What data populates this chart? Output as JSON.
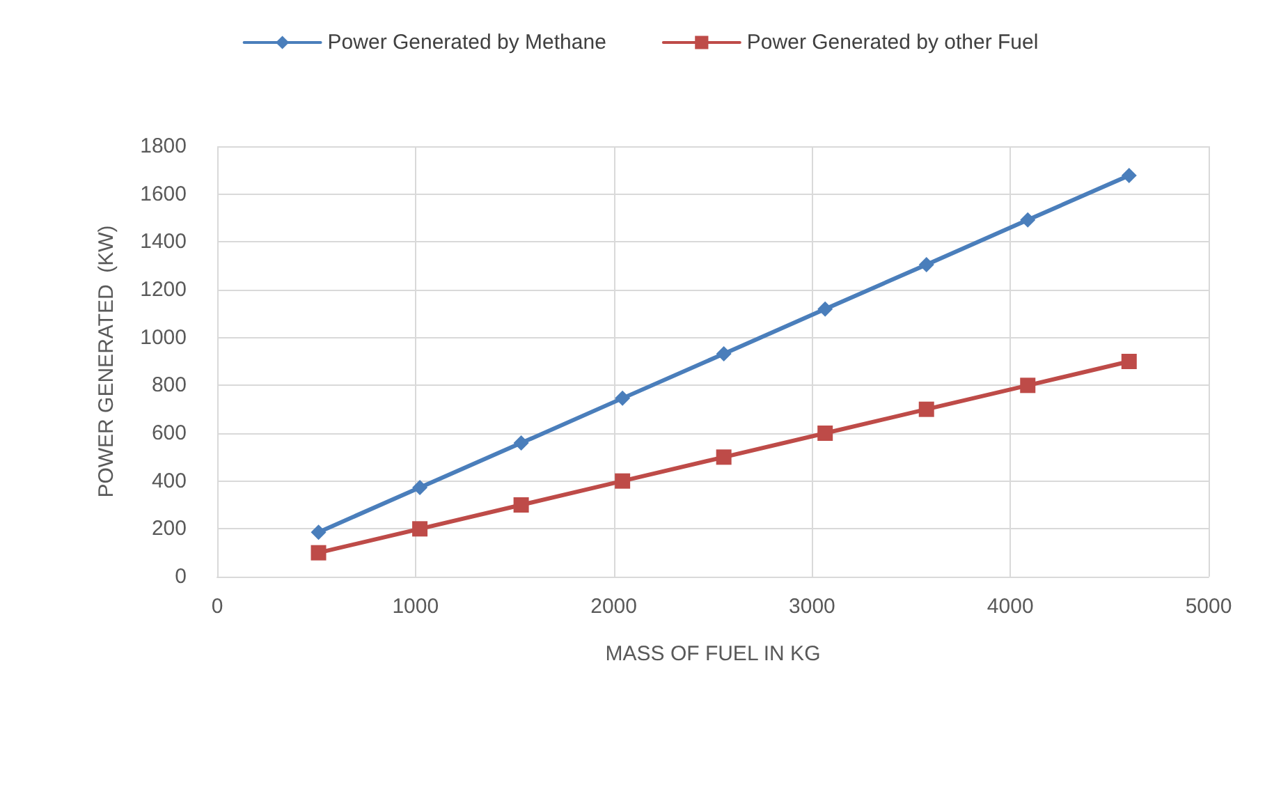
{
  "chart_data": {
    "type": "line",
    "xlabel": "MASS OF FUEL IN KG",
    "ylabel": "POWER GENERATED  (KW)",
    "x": [
      511,
      1022,
      1533,
      2044,
      2555,
      3066,
      3577,
      4088,
      4599
    ],
    "series": [
      {
        "name": "Power Generated by Methane",
        "color": "#4a7ebb",
        "marker": "diamond",
        "values": [
          186,
          373,
          559,
          746,
          932,
          1119,
          1305,
          1492,
          1678
        ]
      },
      {
        "name": "Power Generated by other Fuel",
        "color": "#be4b48",
        "marker": "square",
        "values": [
          100,
          200,
          300,
          400,
          500,
          600,
          700,
          800,
          900
        ]
      }
    ],
    "xlim": [
      0,
      5000
    ],
    "xticks": [
      0,
      1000,
      2000,
      3000,
      4000,
      5000
    ],
    "ylim": [
      0,
      1800
    ],
    "yticks": [
      0,
      200,
      400,
      600,
      800,
      1000,
      1200,
      1400,
      1600,
      1800
    ],
    "grid": true,
    "legend": "top",
    "line_style": "solid"
  }
}
